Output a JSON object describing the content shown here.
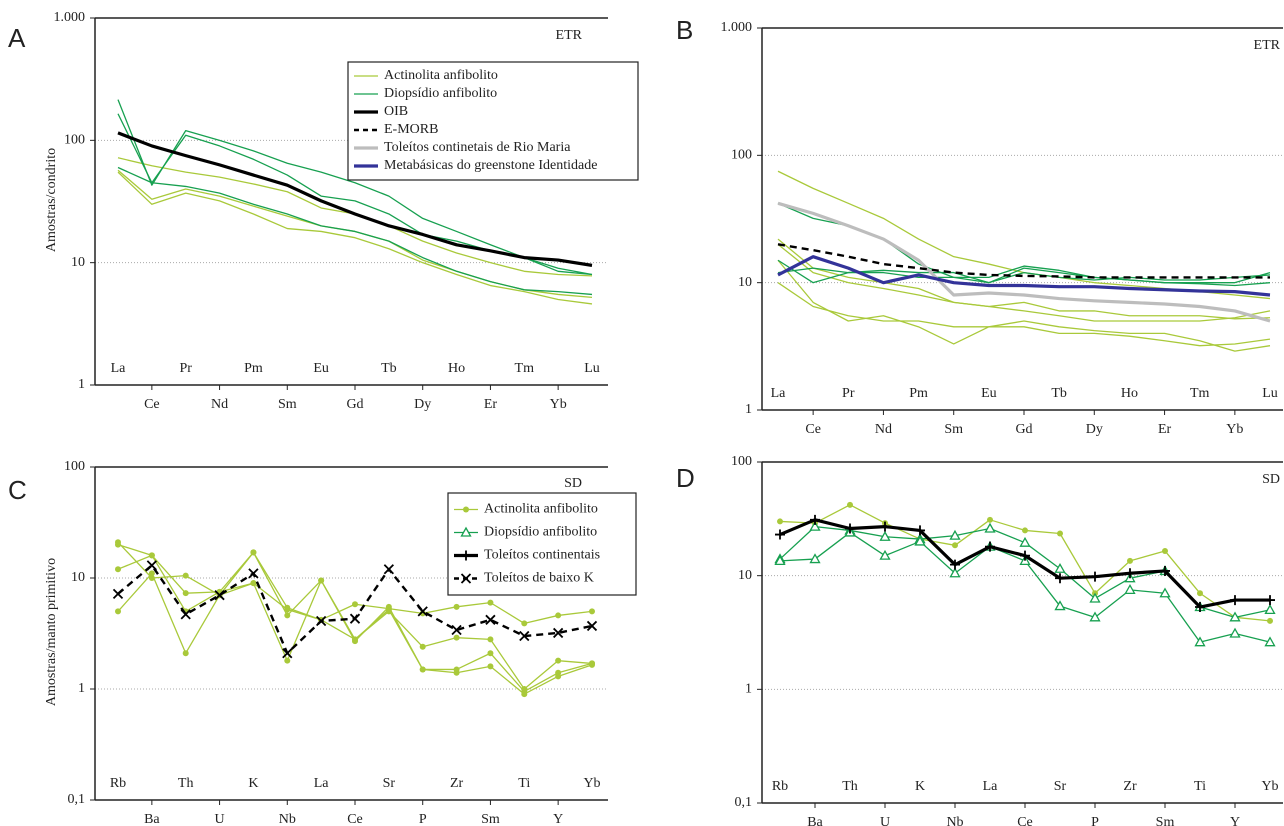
{
  "chart_data": [
    {
      "type": "line",
      "panel": "A",
      "ylabel": "Amostras/condrito",
      "corner_label": "ETR",
      "log_y": true,
      "grid": true,
      "categories": [
        "La",
        "Ce",
        "Pr",
        "Nd",
        "Pm",
        "Sm",
        "Eu",
        "Gd",
        "Tb",
        "Dy",
        "Ho",
        "Er",
        "Tm",
        "Yb",
        "Lu"
      ],
      "ylim": [
        1,
        1000
      ],
      "yticks": [
        1,
        10,
        100,
        {
          "value": 1000,
          "label": "1.000"
        }
      ],
      "legend": [
        {
          "label": "Actinolita anfibolito",
          "color": "#a9c93a",
          "style": "thin"
        },
        {
          "label": "Diopsídio anfibolito",
          "color": "#17a050",
          "style": "thin"
        },
        {
          "label": "OIB",
          "color": "#000000",
          "style": "thick"
        },
        {
          "label": "E-MORB",
          "color": "#000000",
          "style": "dashed"
        },
        {
          "label": "Toleítos continetais de Rio Maria",
          "color": "#bdbdbd",
          "style": "thick"
        },
        {
          "label": "Metabásicas do greenstone Identidade",
          "color": "#333399",
          "style": "thick"
        }
      ],
      "series": [
        {
          "color": "#a9c93a",
          "style": "thin",
          "values": [
            72,
            62,
            55,
            50,
            44,
            38,
            28,
            25,
            20,
            15,
            12,
            10,
            8.5,
            8,
            7.8
          ]
        },
        {
          "color": "#a9c93a",
          "style": "thin",
          "values": [
            57,
            33,
            40,
            35,
            29,
            24,
            20,
            18,
            15,
            10.5,
            8.5,
            7,
            6,
            5.5,
            5.2
          ]
        },
        {
          "color": "#a9c93a",
          "style": "thin",
          "values": [
            55,
            30,
            37,
            32,
            25,
            19,
            18,
            16,
            13,
            10,
            8,
            6.5,
            5.8,
            5,
            4.6
          ]
        },
        {
          "color": "#17a050",
          "style": "thin",
          "values": [
            215,
            43,
            120,
            100,
            82,
            65,
            55,
            45,
            35,
            23,
            18,
            14,
            11,
            9,
            8
          ]
        },
        {
          "color": "#17a050",
          "style": "thin",
          "values": [
            165,
            45,
            110,
            90,
            70,
            52,
            35,
            32,
            25,
            17,
            15,
            12.5,
            11,
            8.5,
            8
          ]
        },
        {
          "color": "#17a050",
          "style": "thin",
          "values": [
            60,
            45,
            42,
            37,
            30,
            25,
            20,
            18,
            15,
            11,
            8.5,
            7,
            6,
            5.8,
            5.5
          ]
        },
        {
          "color": "#000000",
          "style": "thick",
          "values": [
            115,
            90,
            75,
            63,
            52,
            43,
            32,
            25,
            20,
            17,
            14,
            12.5,
            11,
            10.5,
            9.5
          ]
        }
      ]
    },
    {
      "type": "line",
      "panel": "B",
      "corner_label": "ETR",
      "log_y": true,
      "grid": true,
      "categories": [
        "La",
        "Ce",
        "Pr",
        "Nd",
        "Pm",
        "Sm",
        "Eu",
        "Gd",
        "Tb",
        "Dy",
        "Ho",
        "Er",
        "Tm",
        "Yb",
        "Lu"
      ],
      "ylim": [
        1,
        1000
      ],
      "yticks": [
        1,
        10,
        100,
        {
          "value": 1000,
          "label": "1.000"
        }
      ],
      "series": [
        {
          "color": "#a9c93a",
          "style": "thin",
          "values": [
            75,
            55,
            42,
            32,
            22,
            16,
            14,
            12,
            11,
            10,
            9.5,
            9,
            8.5,
            8,
            7.5
          ]
        },
        {
          "color": "#a9c93a",
          "style": "thin",
          "values": [
            22,
            13,
            11,
            10,
            9,
            7,
            6.5,
            6,
            5.5,
            5,
            5,
            5,
            5,
            5.3,
            6
          ]
        },
        {
          "color": "#a9c93a",
          "style": "thin",
          "values": [
            15,
            7,
            5,
            5.5,
            4.5,
            3.3,
            4.5,
            4.5,
            4,
            4,
            3.8,
            3.5,
            3.2,
            3.3,
            3.6
          ]
        },
        {
          "color": "#a9c93a",
          "style": "thin",
          "values": [
            10,
            6.5,
            5.5,
            5,
            5,
            4.5,
            4.5,
            5,
            4.5,
            4.2,
            4,
            4,
            3.5,
            2.9,
            3.2
          ]
        },
        {
          "color": "#a9c93a",
          "style": "thin",
          "values": [
            20,
            12,
            10,
            9,
            8,
            7,
            6.5,
            7,
            6,
            6,
            5.5,
            5.5,
            5.5,
            5.2,
            5.3
          ]
        },
        {
          "color": "#17a050",
          "style": "thin",
          "values": [
            42,
            32,
            28,
            22,
            14,
            11,
            10,
            13,
            12,
            11,
            10.5,
            10,
            10,
            10,
            12
          ]
        },
        {
          "color": "#17a050",
          "style": "thin",
          "values": [
            15,
            10,
            12,
            12,
            11,
            11,
            11,
            13.5,
            12.5,
            11,
            10.5,
            10,
            9.8,
            9.5,
            10
          ]
        },
        {
          "color": "#17a050",
          "style": "thin",
          "values": [
            12,
            13,
            12,
            12.5,
            12,
            12,
            10,
            12,
            11,
            10.5,
            11,
            10.5,
            10.5,
            11,
            11.5
          ]
        },
        {
          "color": "#bdbdbd",
          "style": "thick",
          "values": [
            42,
            35,
            28,
            22,
            15,
            8,
            8.3,
            8,
            7.5,
            7.2,
            7,
            6.8,
            6.5,
            6,
            5
          ]
        },
        {
          "color": "#000000",
          "style": "dashed",
          "values": [
            20,
            18,
            16,
            14,
            13,
            12,
            11.5,
            11.3,
            11.2,
            11,
            11,
            11,
            11,
            11,
            11
          ]
        },
        {
          "color": "#333399",
          "style": "thick",
          "values": [
            11.5,
            16,
            13,
            10,
            11.5,
            10,
            9.5,
            9.5,
            9.3,
            9.3,
            9,
            8.8,
            8.6,
            8.5,
            8
          ]
        }
      ]
    },
    {
      "type": "line",
      "panel": "C",
      "ylabel": "Amostras/manto primitivo",
      "corner_label": "SD",
      "log_y": true,
      "grid": true,
      "categories": [
        "Rb",
        "Ba",
        "Th",
        "U",
        "K",
        "Nb",
        "La",
        "Ce",
        "Sr",
        "P",
        "Zr",
        "Sm",
        "Ti",
        "Y",
        "Yb"
      ],
      "ylim": [
        0.1,
        100
      ],
      "yticks": [
        {
          "value": 0.1,
          "label": "0,1"
        },
        1,
        10,
        100
      ],
      "legend": [
        {
          "label": "Actinolita anfibolito",
          "color": "#a9c93a",
          "style": "thin",
          "marker": "circle"
        },
        {
          "label": "Diopsídio anfibolito",
          "color": "#17a050",
          "style": "thin",
          "marker": "triangle"
        },
        {
          "label": "Toleítos continentais",
          "color": "#000000",
          "style": "thick",
          "marker": "plus"
        },
        {
          "label": "Toleítos de baixo K",
          "color": "#000000",
          "style": "dashed",
          "marker": "cross"
        }
      ],
      "series": [
        {
          "color": "#a9c93a",
          "style": "thin",
          "marker": "circle",
          "values": [
            21,
            10,
            10.5,
            7,
            17,
            5.4,
            4.2,
            5.8,
            5.3,
            4.8,
            5.5,
            6,
            3.9,
            4.6,
            5
          ]
        },
        {
          "color": "#a9c93a",
          "style": "thin",
          "marker": "circle",
          "values": [
            20,
            16,
            5,
            7.5,
            17,
            4.6,
            9.5,
            2.8,
            5,
            2.4,
            2.9,
            2.8,
            1,
            1.8,
            1.7
          ]
        },
        {
          "color": "#a9c93a",
          "style": "thin",
          "marker": "circle",
          "values": [
            12,
            16,
            7.3,
            7.5,
            9,
            1.8,
            9.5,
            2.7,
            5.5,
            1.5,
            1.5,
            2.1,
            0.95,
            1.4,
            1.7
          ]
        },
        {
          "color": "#a9c93a",
          "style": "thin",
          "marker": "circle",
          "values": [
            5,
            11,
            2.1,
            7,
            9,
            5.2,
            4.2,
            2.8,
            5.2,
            1.5,
            1.4,
            1.6,
            0.9,
            1.3,
            1.65
          ]
        },
        {
          "color": "#000000",
          "style": "dashed",
          "marker": "cross",
          "values": [
            7.2,
            13,
            4.7,
            7,
            11,
            2.1,
            4.1,
            4.3,
            12,
            5,
            3.4,
            4.2,
            3,
            3.2,
            3.7
          ]
        }
      ]
    },
    {
      "type": "line",
      "panel": "D",
      "corner_label": "SD",
      "log_y": true,
      "grid": true,
      "categories": [
        "Rb",
        "Ba",
        "Th",
        "U",
        "K",
        "Nb",
        "La",
        "Ce",
        "Sr",
        "P",
        "Zr",
        "Sm",
        "Ti",
        "Y",
        "Yb"
      ],
      "ylim": [
        0.1,
        100
      ],
      "yticks": [
        {
          "value": 0.1,
          "label": "0,1"
        },
        1,
        10,
        100
      ],
      "series": [
        {
          "color": "#a9c93a",
          "style": "thin",
          "marker": "circle",
          "values": [
            30,
            29,
            42,
            29,
            21,
            18.5,
            31,
            25,
            23.5,
            7,
            13.5,
            16.5,
            7,
            4.3,
            4
          ]
        },
        {
          "color": "#17a050",
          "style": "thin",
          "marker": "triangle",
          "values": [
            14,
            27,
            25,
            22,
            21,
            22.5,
            26,
            19.5,
            11.5,
            6.3,
            9.5,
            11,
            5.3,
            4.3,
            5
          ]
        },
        {
          "color": "#17a050",
          "style": "thin",
          "marker": "triangle",
          "values": [
            13.5,
            14,
            24,
            15,
            20,
            10.5,
            18,
            13.5,
            5.4,
            4.3,
            7.5,
            7,
            2.6,
            3.1,
            2.6
          ]
        },
        {
          "color": "#000000",
          "style": "thick",
          "marker": "plus",
          "values": [
            23,
            31,
            26,
            27,
            25,
            12.5,
            18,
            15,
            9.5,
            9.8,
            10.5,
            11,
            5.3,
            6.1,
            6.1
          ]
        }
      ]
    }
  ]
}
